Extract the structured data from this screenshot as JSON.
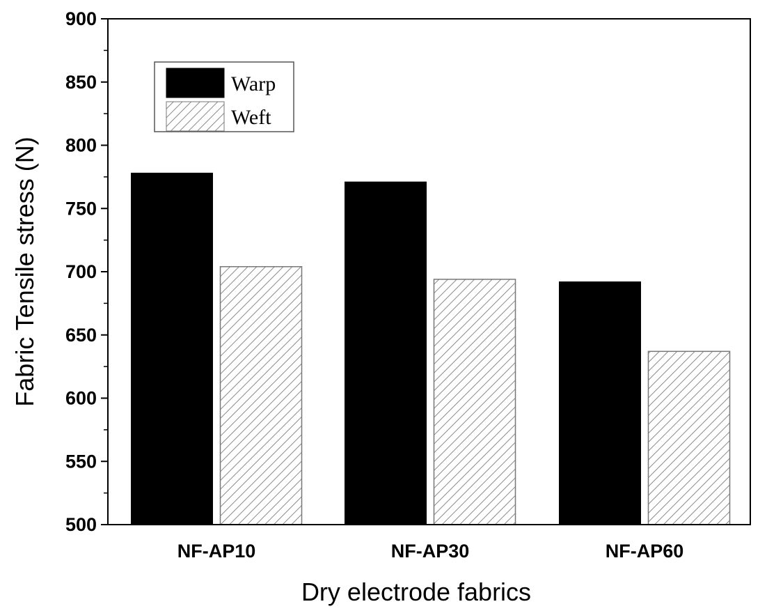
{
  "chart_data": {
    "type": "bar",
    "title": "",
    "xlabel": "Dry electrode fabrics",
    "ylabel": "Fabric Tensile stress (N)",
    "categories": [
      "NF-AP10",
      "NF-AP30",
      "NF-AP60"
    ],
    "series": [
      {
        "name": "Warp",
        "values": [
          778,
          771,
          692
        ],
        "color": "#000000",
        "pattern": "solid"
      },
      {
        "name": "Weft",
        "values": [
          704,
          694,
          637
        ],
        "color": "#ffffff",
        "pattern": "hatched"
      }
    ],
    "ylim": [
      500,
      900
    ],
    "yticks": [
      500,
      550,
      600,
      650,
      700,
      750,
      800,
      850,
      900
    ],
    "grid": false,
    "legend_position": "top-left"
  }
}
